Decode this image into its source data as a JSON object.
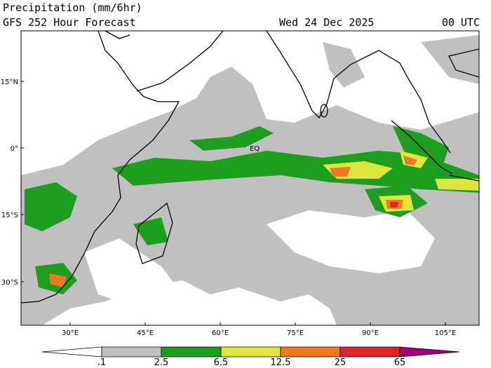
{
  "header": {
    "title": "Precipitation (mm/6hr)",
    "subtitle": "GFS 252 Hour Forecast",
    "date": "Wed 24 Dec 2025",
    "time": "00 UTC"
  },
  "map": {
    "lat_labels": [
      "15°N",
      "0°",
      "15°S",
      "30°S"
    ],
    "lon_labels": [
      "30°E",
      "45°E",
      "60°E",
      "75°E",
      "90°E",
      "105°E"
    ],
    "equator_label": "EQ"
  },
  "colorbar": {
    "labels": [
      ".1",
      "2.5",
      "6.5",
      "12.5",
      "25",
      "65"
    ],
    "colors": [
      "#ffffff",
      "#c0c0c0",
      "#1e9e1e",
      "#dce63c",
      "#f07820",
      "#e0202a",
      "#a0007a"
    ]
  }
}
